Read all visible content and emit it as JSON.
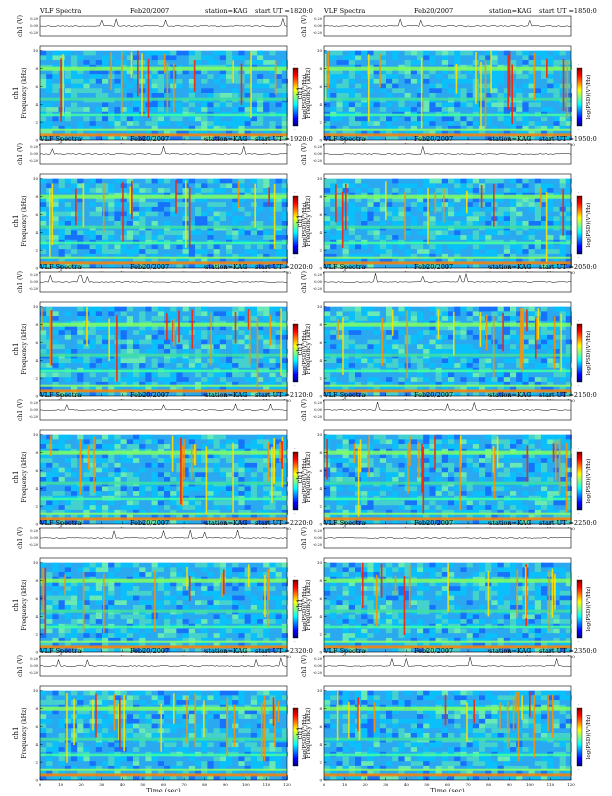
{
  "header": {
    "label": "VLF Spectra",
    "date": "Feb20/2007",
    "station": "station=KAG",
    "start_prefix": "start  UT  ="
  },
  "common": {
    "waveform_label": "ch1 (V)",
    "waveform_ticks": [
      "0.20",
      "0.00",
      "-0.20"
    ],
    "spectrogram_label_channel": "ch1",
    "spectrogram_label": "Frequency  (kHz)",
    "freq_ticks": [
      "0",
      "2",
      "4",
      "6",
      "8",
      "10"
    ],
    "time_ticks": [
      "0",
      "10",
      "20",
      "30",
      "40",
      "50",
      "60",
      "70",
      "80",
      "90",
      "100",
      "110",
      "120"
    ],
    "xlabel": "Time  (sec)",
    "colorbar_label": "log(PSD)(V²/Hz)",
    "colorbar_ticks": [
      "-",
      "-"
    ]
  },
  "colors": {
    "colormap": [
      "#00007f",
      "#0000ff",
      "#0080ff",
      "#00ffff",
      "#80ff80",
      "#ffff00",
      "#ff8000",
      "#ff0000",
      "#7f0000"
    ],
    "background": "#00aaff",
    "axis": "#000000"
  },
  "chart_data": [
    {
      "type": "heatmap",
      "panel": 1,
      "start_ut": "1820:0",
      "xlim": [
        0,
        120
      ],
      "ylim": [
        0,
        10
      ],
      "ylabel": "Frequency (kHz)",
      "xlabel": "Time (sec)",
      "colorbar": true
    },
    {
      "type": "heatmap",
      "panel": 2,
      "start_ut": "1850:0",
      "xlim": [
        0,
        120
      ],
      "ylim": [
        0,
        10
      ],
      "ylabel": "Frequency (kHz)",
      "xlabel": "Time (sec)",
      "colorbar": true
    },
    {
      "type": "heatmap",
      "panel": 3,
      "start_ut": "1920:0",
      "xlim": [
        0,
        120
      ],
      "ylim": [
        0,
        10
      ],
      "ylabel": "Frequency (kHz)",
      "xlabel": "Time (sec)",
      "colorbar": true
    },
    {
      "type": "heatmap",
      "panel": 4,
      "start_ut": "1950:0",
      "xlim": [
        0,
        120
      ],
      "ylim": [
        0,
        10
      ],
      "ylabel": "Frequency (kHz)",
      "xlabel": "Time (sec)",
      "colorbar": true
    },
    {
      "type": "heatmap",
      "panel": 5,
      "start_ut": "2020:0",
      "xlim": [
        0,
        120
      ],
      "ylim": [
        0,
        10
      ],
      "ylabel": "Frequency (kHz)",
      "xlabel": "Time (sec)",
      "colorbar": true
    },
    {
      "type": "heatmap",
      "panel": 6,
      "start_ut": "2050:0",
      "xlim": [
        0,
        120
      ],
      "ylim": [
        0,
        10
      ],
      "ylabel": "Frequency (kHz)",
      "xlabel": "Time (sec)",
      "colorbar": true
    },
    {
      "type": "heatmap",
      "panel": 7,
      "start_ut": "2120:0",
      "xlim": [
        0,
        120
      ],
      "ylim": [
        0,
        10
      ],
      "ylabel": "Frequency (kHz)",
      "xlabel": "Time (sec)",
      "colorbar": true
    },
    {
      "type": "heatmap",
      "panel": 8,
      "start_ut": "2150:0",
      "xlim": [
        0,
        120
      ],
      "ylim": [
        0,
        10
      ],
      "ylabel": "Frequency (kHz)",
      "xlabel": "Time (sec)",
      "colorbar": true
    },
    {
      "type": "heatmap",
      "panel": 9,
      "start_ut": "2220:0",
      "xlim": [
        0,
        120
      ],
      "ylim": [
        0,
        10
      ],
      "ylabel": "Frequency (kHz)",
      "xlabel": "Time (sec)",
      "colorbar": true
    },
    {
      "type": "heatmap",
      "panel": 10,
      "start_ut": "2250:0",
      "xlim": [
        0,
        120
      ],
      "ylim": [
        0,
        10
      ],
      "ylabel": "Frequency (kHz)",
      "xlabel": "Time (sec)",
      "colorbar": true
    },
    {
      "type": "heatmap",
      "panel": 11,
      "start_ut": "2320:0",
      "xlim": [
        0,
        120
      ],
      "ylim": [
        0,
        10
      ],
      "ylabel": "Frequency (kHz)",
      "xlabel": "Time (sec)",
      "colorbar": true
    },
    {
      "type": "heatmap",
      "panel": 12,
      "start_ut": "2350:0",
      "xlim": [
        0,
        120
      ],
      "ylim": [
        0,
        10
      ],
      "ylabel": "Frequency (kHz)",
      "xlabel": "Time (sec)",
      "colorbar": true
    }
  ]
}
